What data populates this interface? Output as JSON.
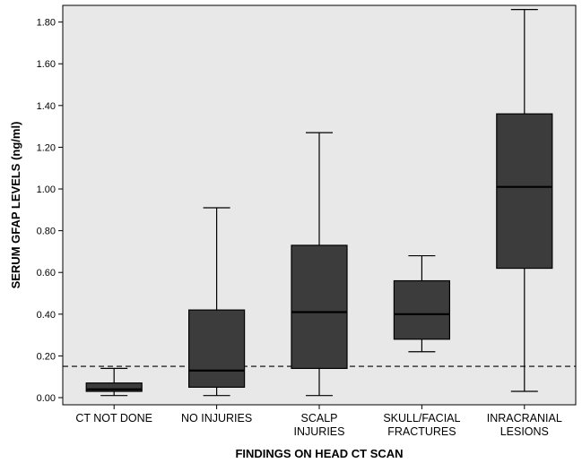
{
  "chart_data": {
    "type": "boxplot",
    "xlabel": "FINDINGS ON HEAD CT SCAN",
    "ylabel": "SERUM GFAP LEVELS (ng/ml)",
    "ylim": [
      0,
      1.88
    ],
    "yticks": [
      "0.00",
      "0.20",
      "0.40",
      "0.60",
      "0.80",
      "1.00",
      "1.20",
      "1.40",
      "1.60",
      "1.80"
    ],
    "reference_line": 0.15,
    "grid": false,
    "colors": {
      "plot_bg": "#e8e8e8",
      "box_fill": "#3c3c3c",
      "line": "#000000"
    },
    "categories": [
      {
        "lines": [
          "CT NOT DONE"
        ],
        "min": 0.01,
        "q1": 0.03,
        "median": 0.04,
        "q3": 0.07,
        "max": 0.14
      },
      {
        "lines": [
          "NO INJURIES"
        ],
        "min": 0.01,
        "q1": 0.05,
        "median": 0.13,
        "q3": 0.42,
        "max": 0.91
      },
      {
        "lines": [
          "SCALP",
          "INJURIES"
        ],
        "min": 0.01,
        "q1": 0.14,
        "median": 0.41,
        "q3": 0.73,
        "max": 1.27
      },
      {
        "lines": [
          "SKULL/FACIAL",
          "FRACTURES"
        ],
        "min": 0.22,
        "q1": 0.28,
        "median": 0.4,
        "q3": 0.56,
        "max": 0.68
      },
      {
        "lines": [
          "INRACRANIAL",
          "LESIONS"
        ],
        "min": 0.03,
        "q1": 0.62,
        "median": 1.01,
        "q3": 1.36,
        "max": 1.86
      }
    ]
  }
}
